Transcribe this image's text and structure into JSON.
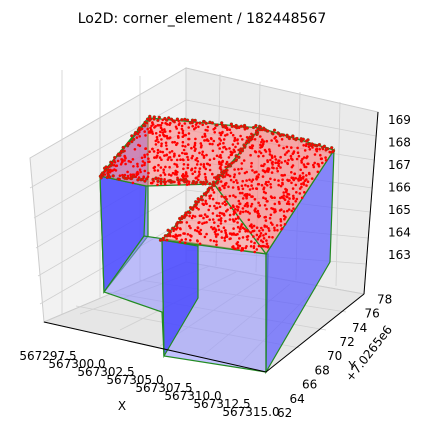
{
  "chart_data": {
    "type": "3d-scatter-with-surfaces",
    "title": "Lo2D: corner_element / 182448567",
    "xlabel": "X",
    "ylabel": "Y",
    "zlabel": "",
    "y_offset_text": "+7.0265e6",
    "xlim": [
      567297.5,
      567315.0
    ],
    "ylim": [
      62,
      78
    ],
    "zlim": [
      162.5,
      169
    ],
    "x_ticks": [
      "567297.5",
      "567300.0",
      "567302.5",
      "567305.0",
      "567307.5",
      "567310.0",
      "567312.5",
      "567315.0"
    ],
    "y_ticks": [
      "62",
      "64",
      "66",
      "68",
      "70",
      "72",
      "74",
      "76",
      "78"
    ],
    "z_ticks": [
      "163",
      "164",
      "165",
      "166",
      "167",
      "168",
      "169"
    ],
    "series": [
      {
        "kind": "points",
        "color": "#ff0000",
        "outline": "#2a7a2a"
      },
      {
        "kind": "roof-faces",
        "color": "#ff9999",
        "edge": "#228b22"
      },
      {
        "kind": "wall-faces",
        "color": "#6a6aff",
        "edge": "#228b22"
      }
    ]
  }
}
